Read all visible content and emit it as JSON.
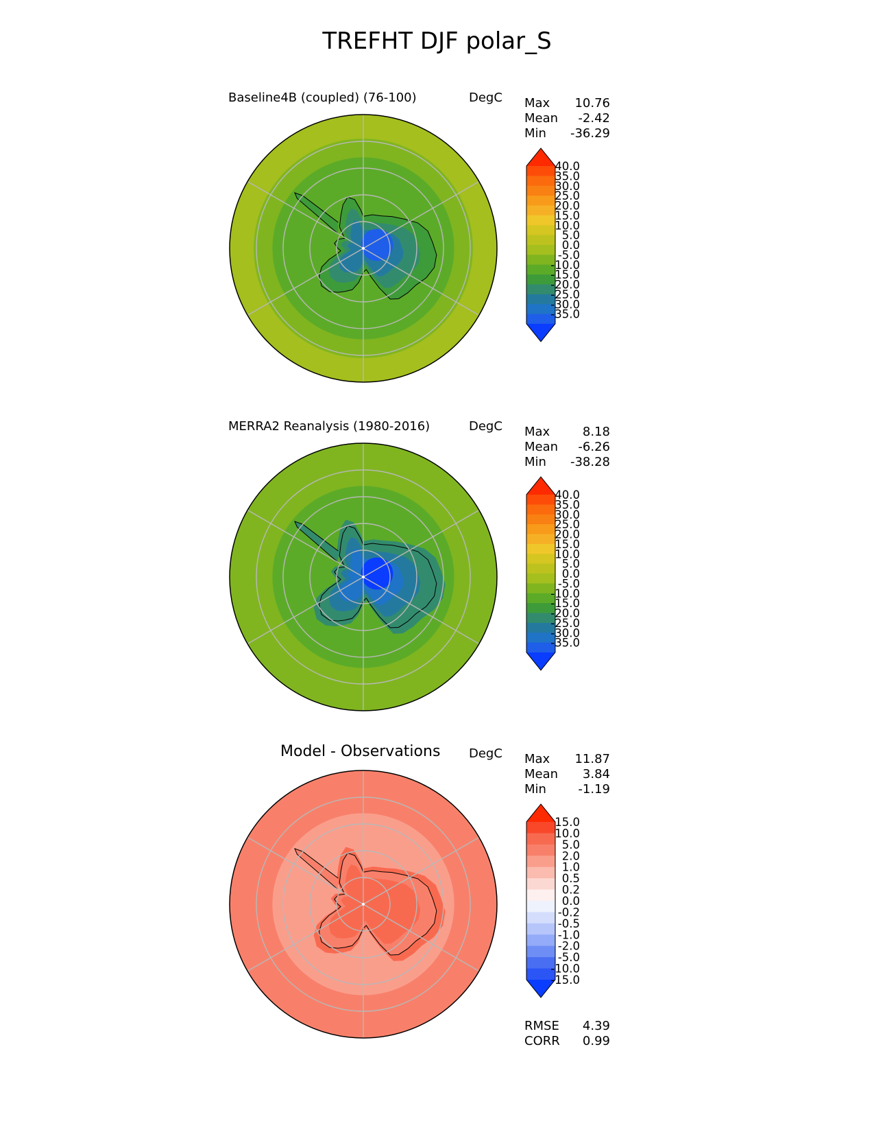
{
  "figure_title": "TREFHT DJF polar_S",
  "chart_data": [
    {
      "type": "heatmap",
      "projection": "south-polar-stereographic",
      "title": "Baseline4B (coupled) (76-100)",
      "units": "DegC",
      "stats": [
        {
          "label": "Max",
          "value": "10.76"
        },
        {
          "label": "Mean",
          "value": "-2.42"
        },
        {
          "label": "Min",
          "value": "-36.29"
        }
      ],
      "colorbar": {
        "levels": [
          -35,
          -30,
          -25,
          -20,
          -15,
          -10,
          -5,
          0,
          5,
          10,
          15,
          20,
          25,
          30,
          35,
          40
        ],
        "tick_labels": [
          "40.0",
          "35.0",
          "30.0",
          "25.0",
          "20.0",
          "15.0",
          "10.0",
          "5.0",
          "0.0",
          "-5.0",
          "-10.0",
          "-15.0",
          "-20.0",
          "-25.0",
          "-30.0",
          "-35.0"
        ],
        "colors": [
          "#0a3dff",
          "#1e5ee8",
          "#1f74c7",
          "#247a9e",
          "#338b6e",
          "#3e9b3a",
          "#5cab28",
          "#80b520",
          "#a4bf1e",
          "#bdc21e",
          "#d6c622",
          "#f0c72a",
          "#f6b026",
          "#f89a1a",
          "#f98012",
          "#fb6a0d",
          "#fd4c08",
          "#ff2a00"
        ]
      },
      "field": {
        "pole": -31,
        "interior": -24,
        "coast": -14,
        "sea_near": -6,
        "sea_far": 2
      }
    },
    {
      "type": "heatmap",
      "projection": "south-polar-stereographic",
      "title": "MERRA2 Reanalysis (1980-2016)",
      "units": "DegC",
      "stats": [
        {
          "label": "Max",
          "value": "8.18"
        },
        {
          "label": "Mean",
          "value": "-6.26"
        },
        {
          "label": "Min",
          "value": "-38.28"
        }
      ],
      "colorbar": {
        "levels": [
          -35,
          -30,
          -25,
          -20,
          -15,
          -10,
          -5,
          0,
          5,
          10,
          15,
          20,
          25,
          30,
          35,
          40
        ],
        "tick_labels": [
          "40.0",
          "35.0",
          "30.0",
          "25.0",
          "20.0",
          "15.0",
          "10.0",
          "5.0",
          "0.0",
          "-5.0",
          "-10.0",
          "-15.0",
          "-20.0",
          "-25.0",
          "-30.0",
          "-35.0"
        ],
        "colors": [
          "#0a3dff",
          "#1e5ee8",
          "#1f74c7",
          "#247a9e",
          "#338b6e",
          "#3e9b3a",
          "#5cab28",
          "#80b520",
          "#a4bf1e",
          "#bdc21e",
          "#d6c622",
          "#f0c72a",
          "#f6b026",
          "#f89a1a",
          "#f98012",
          "#fb6a0d",
          "#fd4c08",
          "#ff2a00"
        ]
      },
      "field": {
        "pole": -36,
        "interior": -29,
        "coast": -20,
        "sea_near": -9,
        "sea_far": -1
      }
    },
    {
      "type": "heatmap",
      "projection": "south-polar-stereographic",
      "title": "Model - Observations",
      "units": "DegC",
      "stats": [
        {
          "label": "Max",
          "value": "11.87"
        },
        {
          "label": "Mean",
          "value": "3.84"
        },
        {
          "label": "Min",
          "value": "-1.19"
        }
      ],
      "colorbar": {
        "levels": [
          -15,
          -10,
          -5,
          -2,
          -1,
          -0.5,
          -0.2,
          0,
          0.2,
          0.5,
          1,
          2,
          5,
          10,
          15
        ],
        "tick_labels": [
          "15.0",
          "10.0",
          "5.0",
          "2.0",
          "1.0",
          "0.5",
          "0.2",
          "0.0",
          "-0.2",
          "-0.5",
          "-1.0",
          "-2.0",
          "-5.0",
          "-10.0",
          "-15.0"
        ],
        "colors": [
          "#0a3dff",
          "#2b55f5",
          "#4a6ef2",
          "#6f8ef5",
          "#93abf8",
          "#b6c6fb",
          "#d4defc",
          "#eef2fd",
          "#fdf0ee",
          "#fcd8d2",
          "#fbbbaf",
          "#fa9e8c",
          "#f8806a",
          "#f86a50",
          "#f9472a",
          "#ff2a00"
        ]
      },
      "field": {
        "pole": 6,
        "interior": 6,
        "coast": 4,
        "sea_near": 1.5,
        "sea_far": 4
      },
      "metrics": [
        {
          "label": "RMSE",
          "value": "4.39"
        },
        {
          "label": "CORR",
          "value": "0.99"
        }
      ]
    }
  ]
}
